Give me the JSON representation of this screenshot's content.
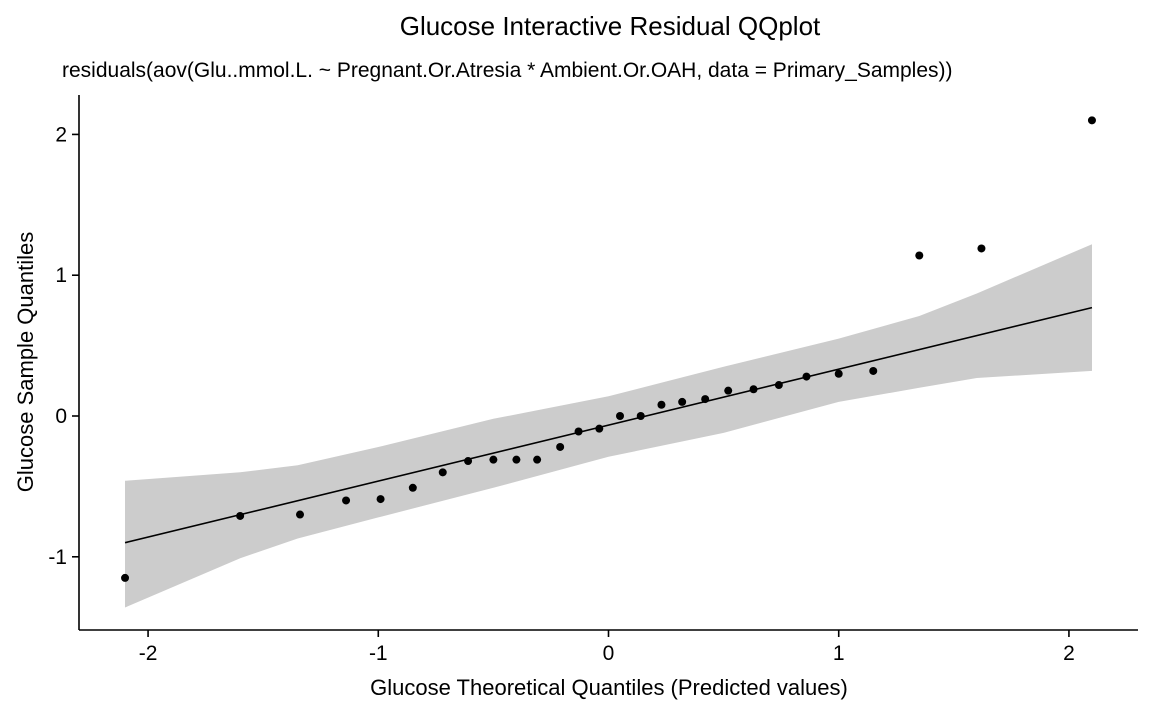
{
  "chart_data": {
    "type": "scatter",
    "title": "Glucose Interactive Residual QQplot",
    "subtitle": "residuals(aov(Glu..mmol.L. ~ Pregnant.Or.Atresia * Ambient.Or.OAH, data = Primary_Samples))",
    "xlabel": "Glucose Theoretical Quantiles (Predicted values)",
    "ylabel": "Glucose Sample Quantiles",
    "xlim": [
      -2.3,
      2.3
    ],
    "ylim": [
      -1.52,
      2.28
    ],
    "xticks": [
      -2,
      -1,
      0,
      1,
      2
    ],
    "xtick_labels": [
      "-2",
      "-1",
      "0",
      "1",
      "2"
    ],
    "yticks": [
      -1,
      0,
      1,
      2
    ],
    "ytick_labels": [
      "-1",
      "0",
      "1",
      "2"
    ],
    "grid": false,
    "reference_line": {
      "x": [
        -2.1,
        2.1
      ],
      "y": [
        -0.9,
        0.77
      ]
    },
    "confidence_band": {
      "x": [
        -2.1,
        -1.6,
        -1.35,
        -1.0,
        -0.5,
        0.0,
        0.5,
        1.0,
        1.35,
        1.6,
        2.1
      ],
      "lower": [
        -1.36,
        -1.01,
        -0.87,
        -0.72,
        -0.51,
        -0.29,
        -0.12,
        0.1,
        0.2,
        0.27,
        0.32
      ],
      "upper": [
        -0.46,
        -0.4,
        -0.35,
        -0.22,
        -0.02,
        0.14,
        0.35,
        0.55,
        0.71,
        0.87,
        1.22
      ]
    },
    "points": [
      {
        "x": -2.1,
        "y": -1.15
      },
      {
        "x": -1.6,
        "y": -0.71
      },
      {
        "x": -1.34,
        "y": -0.7
      },
      {
        "x": -1.14,
        "y": -0.6
      },
      {
        "x": -0.99,
        "y": -0.59
      },
      {
        "x": -0.85,
        "y": -0.51
      },
      {
        "x": -0.72,
        "y": -0.4
      },
      {
        "x": -0.61,
        "y": -0.32
      },
      {
        "x": -0.5,
        "y": -0.31
      },
      {
        "x": -0.4,
        "y": -0.31
      },
      {
        "x": -0.31,
        "y": -0.31
      },
      {
        "x": -0.21,
        "y": -0.22
      },
      {
        "x": -0.13,
        "y": -0.11
      },
      {
        "x": -0.04,
        "y": -0.09
      },
      {
        "x": 0.05,
        "y": 0.0
      },
      {
        "x": 0.14,
        "y": 0.0
      },
      {
        "x": 0.23,
        "y": 0.08
      },
      {
        "x": 0.32,
        "y": 0.1
      },
      {
        "x": 0.42,
        "y": 0.12
      },
      {
        "x": 0.52,
        "y": 0.18
      },
      {
        "x": 0.63,
        "y": 0.19
      },
      {
        "x": 0.74,
        "y": 0.22
      },
      {
        "x": 0.86,
        "y": 0.28
      },
      {
        "x": 1.0,
        "y": 0.3
      },
      {
        "x": 1.15,
        "y": 0.32
      },
      {
        "x": 1.35,
        "y": 1.14
      },
      {
        "x": 1.62,
        "y": 1.19
      },
      {
        "x": 2.1,
        "y": 2.1
      }
    ],
    "colors": {
      "points": "#000000",
      "band": "#cccccc",
      "line": "#000000",
      "axis": "#000000"
    }
  }
}
